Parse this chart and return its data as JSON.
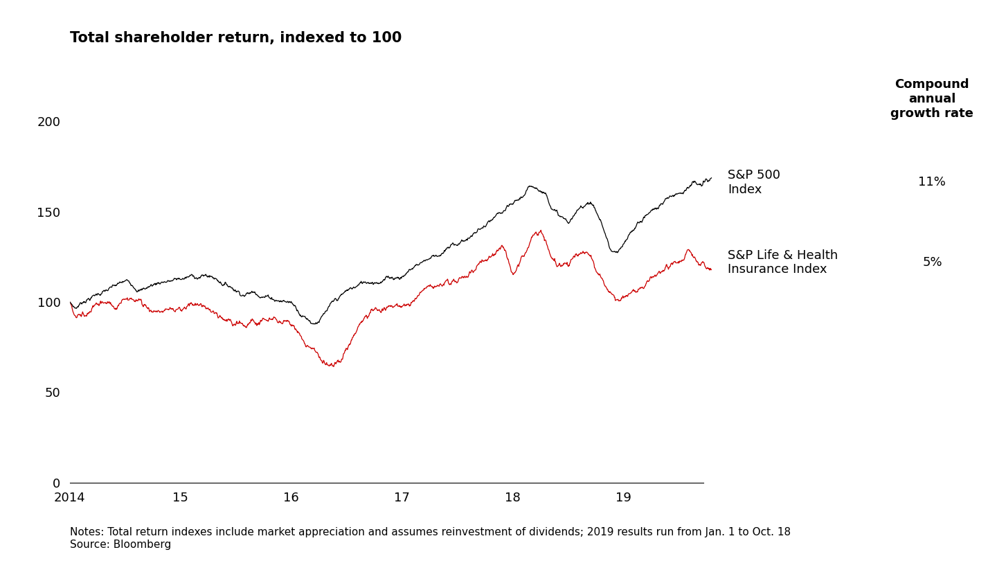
{
  "title": "Total shareholder return, indexed to 100",
  "notes": "Notes: Total return indexes include market appreciation and assumes reinvestment of dividends; 2019 results run from Jan. 1 to Oct. 18",
  "source": "Source: Bloomberg",
  "sp500_label": "S&P 500\nIndex",
  "insurance_label": "S&P Life & Health\nInsurance Index",
  "cagr_header": "Compound\nannual\ngrowth rate",
  "sp500_cagr": "11%",
  "insurance_cagr": "5%",
  "sp500_color": "#000000",
  "insurance_color": "#cc0000",
  "background_color": "#ffffff",
  "ylim": [
    0,
    230
  ],
  "yticks": [
    0,
    50,
    100,
    150,
    200
  ],
  "title_fontsize": 15,
  "tick_fontsize": 13,
  "label_fontsize": 13,
  "cagr_fontsize": 13,
  "notes_fontsize": 11
}
